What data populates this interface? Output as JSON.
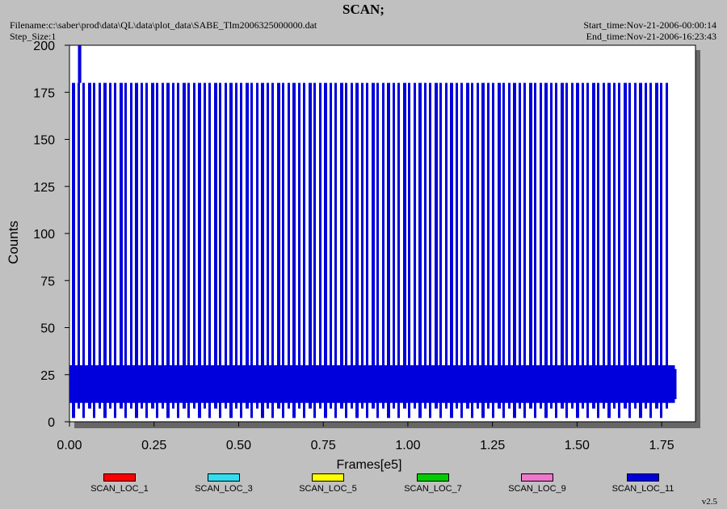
{
  "header": {
    "title": "SCAN;",
    "filename": "Filename:c:\\saber\\prod\\data\\QL\\data\\plot_data\\SABE_Tlm2006325000000.dat",
    "step_size": "Step_Size:1",
    "start_time": "Start_time:Nov-21-2006-00:00:14",
    "end_time": "End_time:Nov-21-2006-16:23:43"
  },
  "version": "v2.5",
  "chart_data": {
    "type": "line",
    "title": "SCAN;",
    "xlabel": "Frames[e5]",
    "ylabel": "Counts",
    "xlim": [
      0,
      1.85
    ],
    "ylim": [
      0,
      200
    ],
    "x_ticks": [
      "0.00",
      "0.25",
      "0.50",
      "0.75",
      "1.00",
      "1.25",
      "1.50",
      "1.75"
    ],
    "y_ticks": [
      "0",
      "25",
      "50",
      "75",
      "100",
      "125",
      "150",
      "175",
      "200"
    ],
    "grid": false,
    "legend_position": "bottom",
    "series": [
      {
        "name": "SCAN_LOC_1",
        "color": "#ff0000",
        "x": [],
        "y": []
      },
      {
        "name": "SCAN_LOC_3",
        "color": "#33ddee",
        "x": [],
        "y": []
      },
      {
        "name": "SCAN_LOC_5",
        "color": "#ffff00",
        "x": [],
        "y": []
      },
      {
        "name": "SCAN_LOC_7",
        "color": "#00cc00",
        "x": [],
        "y": []
      },
      {
        "name": "SCAN_LOC_9",
        "color": "#ee77cc",
        "x": [],
        "y": []
      },
      {
        "name": "SCAN_LOC_11",
        "color": "#0000dd",
        "envelope": {
          "x_start": 0.0,
          "x_end": 1.77,
          "low": 2,
          "high": 180
        },
        "dense_band": {
          "low": 10,
          "high": 30
        },
        "spikes": [
          {
            "x": 0.03,
            "y": 200
          },
          {
            "x": 0.03,
            "y": 200
          }
        ]
      }
    ]
  }
}
